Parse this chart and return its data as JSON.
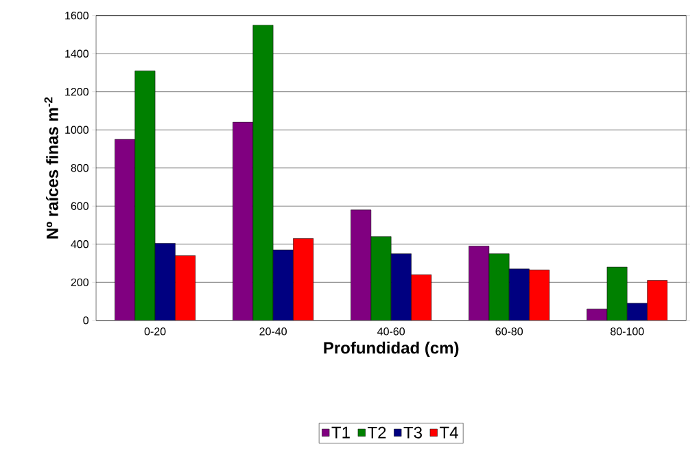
{
  "chart_data": {
    "type": "bar",
    "xlabel": "Profundidad (cm)",
    "ylabel": "Nº raíces finas m$^{-2}$",
    "categories": [
      "0-20",
      "20-40",
      "40-60",
      "60-80",
      "80-100"
    ],
    "series": [
      {
        "name": "T1",
        "color": "#800080",
        "values": [
          950,
          1040,
          580,
          390,
          60
        ]
      },
      {
        "name": "T2",
        "color": "#008000",
        "values": [
          1310,
          1550,
          440,
          350,
          280
        ]
      },
      {
        "name": "T3",
        "color": "#000080",
        "values": [
          405,
          370,
          350,
          270,
          90
        ]
      },
      {
        "name": "T4",
        "color": "#ff0000",
        "values": [
          340,
          430,
          240,
          265,
          210
        ]
      }
    ],
    "ylim": [
      0,
      1600
    ],
    "yticks": [
      0,
      200,
      400,
      600,
      800,
      1000,
      1200,
      1400,
      1600
    ],
    "grid": "y",
    "legend": "bottom"
  }
}
